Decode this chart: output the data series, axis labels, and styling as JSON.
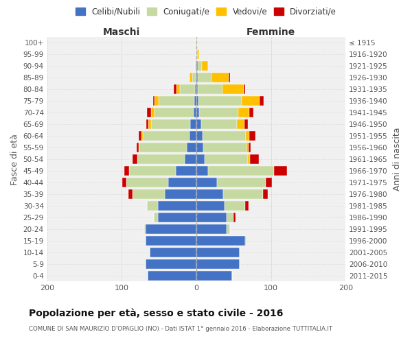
{
  "age_groups": [
    "0-4",
    "5-9",
    "10-14",
    "15-19",
    "20-24",
    "25-29",
    "30-34",
    "35-39",
    "40-44",
    "45-49",
    "50-54",
    "55-59",
    "60-64",
    "65-69",
    "70-74",
    "75-79",
    "80-84",
    "85-89",
    "90-94",
    "95-99",
    "100+"
  ],
  "birth_years": [
    "2011-2015",
    "2006-2010",
    "2001-2005",
    "1996-2000",
    "1991-1995",
    "1986-1990",
    "1981-1985",
    "1976-1980",
    "1971-1975",
    "1966-1970",
    "1961-1965",
    "1956-1960",
    "1951-1955",
    "1946-1950",
    "1941-1945",
    "1936-1940",
    "1931-1935",
    "1926-1930",
    "1921-1925",
    "1916-1920",
    "≤ 1915"
  ],
  "colors": {
    "celibe": "#4472c4",
    "coniugato": "#c5d9a0",
    "vedovo": "#ffc000",
    "divorziato": "#cc0000"
  },
  "maschi": {
    "celibe": [
      65,
      68,
      63,
      68,
      68,
      52,
      52,
      42,
      38,
      28,
      16,
      13,
      9,
      8,
      4,
      3,
      2,
      1,
      0,
      0,
      0
    ],
    "coniugato": [
      0,
      0,
      0,
      0,
      2,
      5,
      14,
      44,
      56,
      62,
      63,
      63,
      63,
      53,
      52,
      48,
      20,
      5,
      2,
      0,
      0
    ],
    "vedovo": [
      0,
      0,
      0,
      0,
      0,
      0,
      0,
      0,
      0,
      0,
      0,
      1,
      2,
      3,
      5,
      5,
      5,
      3,
      0,
      0,
      0
    ],
    "divorziato": [
      0,
      0,
      0,
      0,
      0,
      0,
      0,
      5,
      5,
      7,
      7,
      3,
      3,
      3,
      5,
      2,
      3,
      0,
      0,
      0,
      0
    ]
  },
  "femmine": {
    "celibe": [
      48,
      58,
      58,
      65,
      40,
      40,
      38,
      36,
      28,
      16,
      11,
      9,
      8,
      6,
      4,
      3,
      2,
      2,
      2,
      0,
      0
    ],
    "coniugato": [
      0,
      0,
      0,
      2,
      5,
      10,
      27,
      53,
      65,
      88,
      58,
      58,
      58,
      48,
      52,
      58,
      33,
      18,
      5,
      2,
      0
    ],
    "vedovo": [
      0,
      0,
      0,
      0,
      0,
      0,
      0,
      0,
      0,
      0,
      3,
      3,
      5,
      10,
      15,
      24,
      28,
      23,
      9,
      2,
      1
    ],
    "divorziato": [
      0,
      0,
      0,
      0,
      0,
      2,
      5,
      7,
      8,
      17,
      12,
      3,
      8,
      5,
      5,
      5,
      2,
      2,
      0,
      0,
      0
    ]
  },
  "xlim": 200,
  "title": "Popolazione per età, sesso e stato civile - 2016",
  "subtitle": "COMUNE DI SAN MAURIZIO D'OPAGLIO (NO) - Dati ISTAT 1° gennaio 2016 - Elaborazione TUTTITALIA.IT",
  "ylabel_left": "Fasce di età",
  "ylabel_right": "Anni di nascita",
  "xlabel_maschi": "Maschi",
  "xlabel_femmine": "Femmine",
  "legend_labels": [
    "Celibi/Nubili",
    "Coniugati/e",
    "Vedovi/e",
    "Divorziati/e"
  ],
  "background_color": "#ffffff",
  "plot_bg_color": "#f0f0f0",
  "grid_color": "#cccccc"
}
